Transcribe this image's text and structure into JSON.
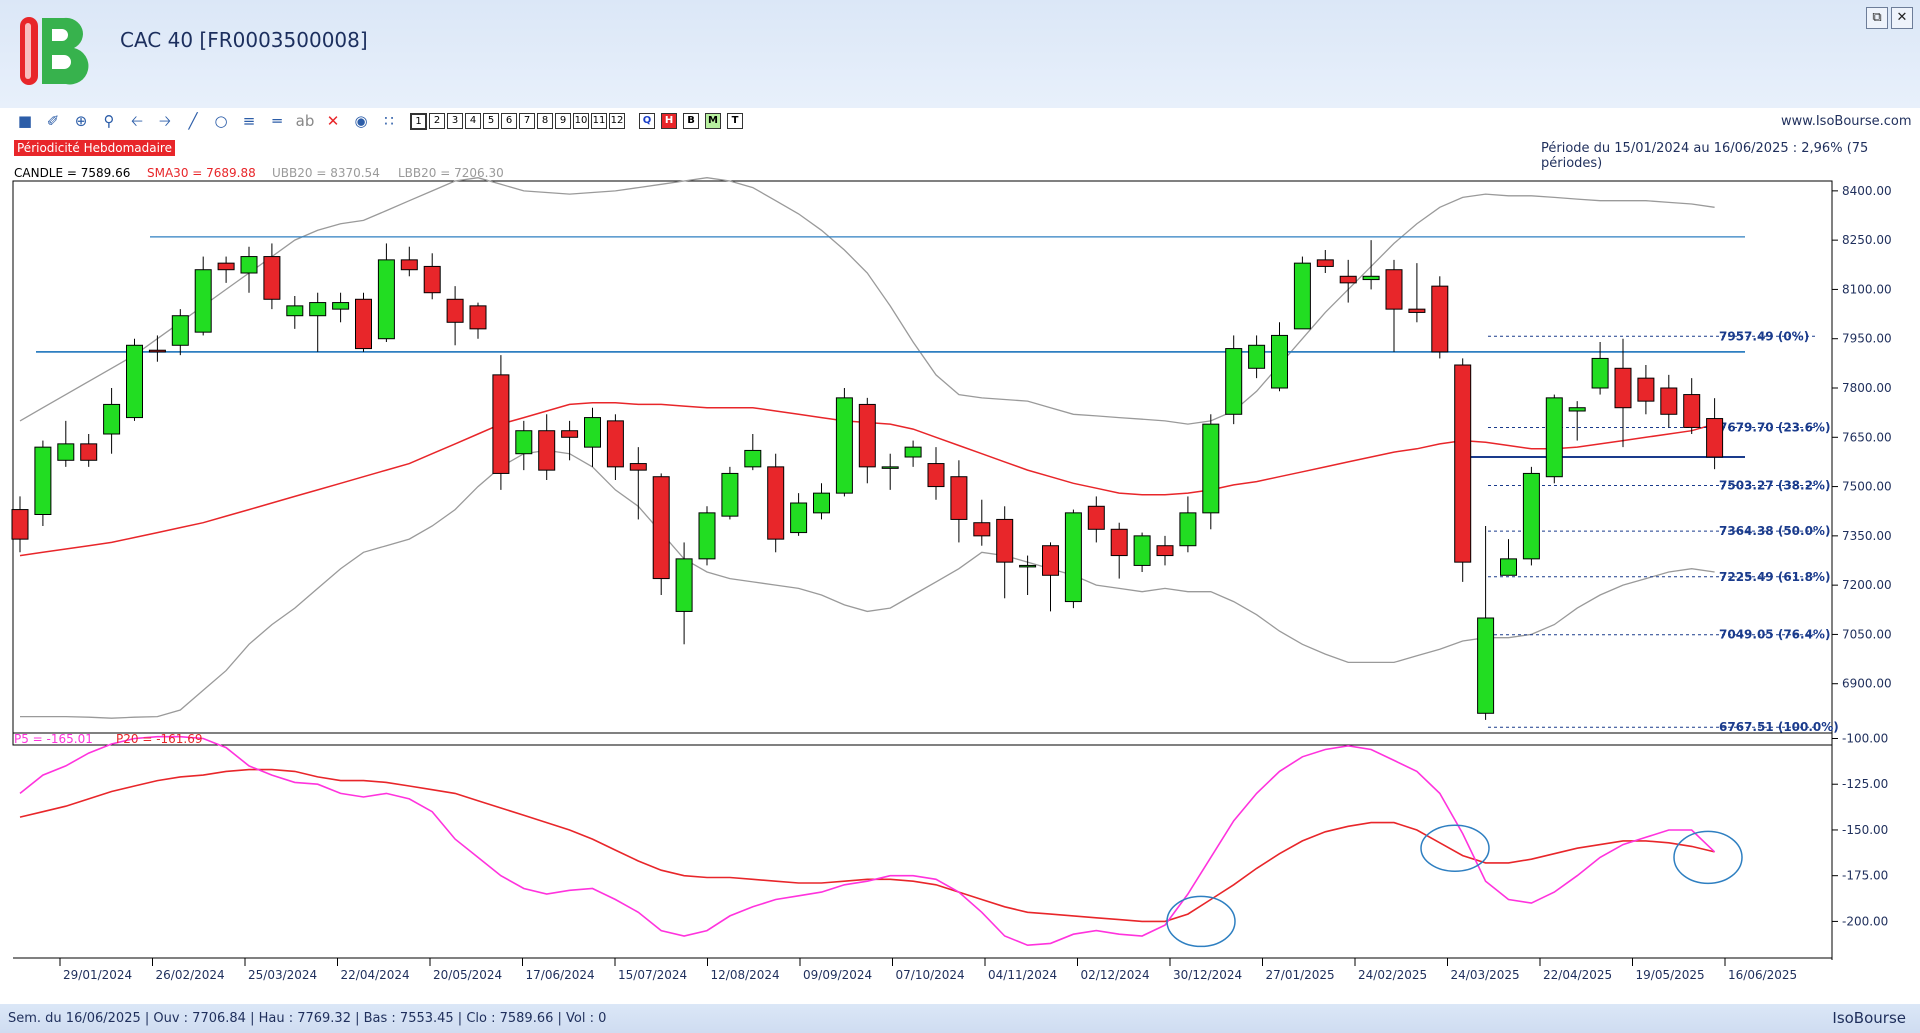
{
  "window": {
    "title": "CAC 40 [FR0003500008]",
    "restore_icon": "restore-icon",
    "close_icon": "close-icon",
    "site": "www.IsoBourse.com"
  },
  "toolbar": {
    "icons": [
      "square-icon",
      "draw-brush-icon",
      "crosshair-icon",
      "zoom-icon",
      "arrow-left-icon",
      "arrow-right-icon",
      "line-icon",
      "circle-icon",
      "fibonacci-icon",
      "channel-icon",
      "text-icon",
      "delete-icon",
      "camera-icon",
      "network-icon"
    ],
    "text_tool_label": "ab",
    "periods": [
      "1",
      "2",
      "3",
      "4",
      "5",
      "6",
      "7",
      "8",
      "9",
      "10",
      "11",
      "12"
    ],
    "letters": [
      {
        "label": "Q",
        "color": "#1a3fc8"
      },
      {
        "label": "H",
        "color": "#ffffff",
        "bg": "#e8262a"
      },
      {
        "label": "B",
        "color": "#000000"
      },
      {
        "label": "M",
        "color": "#000000",
        "bg": "#b8f0a0"
      },
      {
        "label": "T",
        "color": "#000000"
      }
    ]
  },
  "periodicity_label": "Périodicité Hebdomadaire",
  "period_info": "Période du 15/01/2024 au 16/06/2025 : 2,96% (75 périodes)",
  "legend": {
    "candle": "CANDLE = 7589.66",
    "sma": "SMA30 = 7689.88",
    "ubb": "UBB20 = 8370.54",
    "lbb": "LBB20 = 7206.30",
    "p5": "P5 = -165.01",
    "p20": "P20 = -161.69"
  },
  "status": "Sem. du 16/06/2025 | Ouv : 7706.84 | Hau : 7769.32 | Bas : 7553.45 | Clo : 7589.66 | Vol : 0",
  "brand": "IsoBourse",
  "colors": {
    "up": "#22dd22",
    "down": "#e8262a",
    "sma": "#e8262a",
    "bollinger": "#9a9a9a",
    "hline": "#2e7fc1",
    "fib": "#1a3b8c",
    "p5": "#ff33dd",
    "p20": "#e8262a",
    "circle": "#2e7fc1"
  },
  "chart_data": [
    {
      "type": "candlestick",
      "x_ticks": [
        "29/01/2024",
        "26/02/2024",
        "25/03/2024",
        "22/04/2024",
        "20/05/2024",
        "17/06/2024",
        "15/07/2024",
        "12/08/2024",
        "09/09/2024",
        "07/10/2024",
        "04/11/2024",
        "02/12/2024",
        "30/12/2024",
        "27/01/2025",
        "24/02/2025",
        "24/03/2025",
        "22/04/2025",
        "19/05/2025",
        "16/06/2025"
      ],
      "y_ticks": [
        8400,
        8250,
        8100,
        7950,
        7800,
        7650,
        7500,
        7350,
        7200,
        7050,
        6900
      ],
      "ylim": [
        6750,
        8430
      ],
      "candles": [
        [
          7430,
          7340,
          7470,
          7300
        ],
        [
          7415,
          7620,
          7640,
          7380
        ],
        [
          7580,
          7630,
          7700,
          7560
        ],
        [
          7630,
          7580,
          7660,
          7560
        ],
        [
          7660,
          7750,
          7800,
          7600
        ],
        [
          7710,
          7930,
          7950,
          7700
        ],
        [
          7915,
          7910,
          7960,
          7880
        ],
        [
          7930,
          8020,
          8040,
          7900
        ],
        [
          7970,
          8160,
          8200,
          7960
        ],
        [
          8180,
          8160,
          8200,
          8120
        ],
        [
          8150,
          8200,
          8230,
          8090
        ],
        [
          8200,
          8070,
          8240,
          8040
        ],
        [
          8020,
          8050,
          8080,
          7980
        ],
        [
          8020,
          8060,
          8090,
          7910
        ],
        [
          8040,
          8060,
          8090,
          8000
        ],
        [
          8070,
          7920,
          8090,
          7910
        ],
        [
          7950,
          8190,
          8240,
          7940
        ],
        [
          8190,
          8160,
          8230,
          8140
        ],
        [
          8170,
          8090,
          8210,
          8070
        ],
        [
          8070,
          8000,
          8110,
          7930
        ],
        [
          8050,
          7980,
          8060,
          7950
        ],
        [
          7840,
          7540,
          7900,
          7490
        ],
        [
          7600,
          7670,
          7700,
          7550
        ],
        [
          7670,
          7550,
          7720,
          7520
        ],
        [
          7670,
          7650,
          7700,
          7580
        ],
        [
          7620,
          7710,
          7740,
          7560
        ],
        [
          7700,
          7560,
          7720,
          7520
        ],
        [
          7570,
          7550,
          7620,
          7400
        ],
        [
          7530,
          7220,
          7540,
          7170
        ],
        [
          7120,
          7280,
          7330,
          7020
        ],
        [
          7280,
          7420,
          7440,
          7260
        ],
        [
          7410,
          7540,
          7560,
          7400
        ],
        [
          7560,
          7610,
          7660,
          7550
        ],
        [
          7560,
          7340,
          7600,
          7300
        ],
        [
          7360,
          7450,
          7480,
          7350
        ],
        [
          7420,
          7480,
          7510,
          7400
        ],
        [
          7480,
          7770,
          7800,
          7470
        ],
        [
          7750,
          7560,
          7770,
          7510
        ],
        [
          7560,
          7560,
          7600,
          7490
        ],
        [
          7590,
          7620,
          7640,
          7560
        ],
        [
          7570,
          7500,
          7620,
          7460
        ],
        [
          7530,
          7400,
          7580,
          7330
        ],
        [
          7390,
          7350,
          7460,
          7320
        ],
        [
          7400,
          7270,
          7440,
          7160
        ],
        [
          7260,
          7260,
          7290,
          7170
        ],
        [
          7320,
          7230,
          7330,
          7120
        ],
        [
          7150,
          7420,
          7430,
          7130
        ],
        [
          7440,
          7370,
          7470,
          7330
        ],
        [
          7370,
          7290,
          7390,
          7220
        ],
        [
          7260,
          7350,
          7360,
          7240
        ],
        [
          7320,
          7290,
          7350,
          7260
        ],
        [
          7320,
          7420,
          7470,
          7300
        ],
        [
          7420,
          7690,
          7720,
          7370
        ],
        [
          7720,
          7920,
          7960,
          7690
        ],
        [
          7860,
          7930,
          7960,
          7830
        ],
        [
          7800,
          7960,
          8000,
          7790
        ],
        [
          7980,
          8180,
          8200,
          7980
        ],
        [
          8190,
          8170,
          8220,
          8150
        ],
        [
          8140,
          8120,
          8190,
          8060
        ],
        [
          8130,
          8140,
          8250,
          8100
        ],
        [
          8160,
          8040,
          8190,
          7910
        ],
        [
          8040,
          8030,
          8180,
          8000
        ],
        [
          8110,
          7910,
          8140,
          7890
        ],
        [
          7870,
          7270,
          7890,
          7210
        ],
        [
          6810,
          7100,
          7380,
          6790
        ],
        [
          7230,
          7280,
          7340,
          7230
        ],
        [
          7280,
          7540,
          7560,
          7260
        ],
        [
          7530,
          7770,
          7780,
          7510
        ],
        [
          7730,
          7740,
          7760,
          7640
        ],
        [
          7800,
          7890,
          7940,
          7780
        ],
        [
          7860,
          7740,
          7950,
          7620
        ],
        [
          7830,
          7760,
          7870,
          7720
        ],
        [
          7800,
          7720,
          7840,
          7680
        ],
        [
          7780,
          7680,
          7830,
          7660
        ],
        [
          7707,
          7590,
          7769,
          7553
        ]
      ],
      "sma30": [
        7290,
        7300,
        7310,
        7320,
        7330,
        7345,
        7360,
        7375,
        7390,
        7410,
        7430,
        7450,
        7470,
        7490,
        7510,
        7530,
        7550,
        7570,
        7600,
        7630,
        7660,
        7690,
        7710,
        7730,
        7750,
        7755,
        7755,
        7750,
        7750,
        7745,
        7740,
        7740,
        7740,
        7730,
        7720,
        7710,
        7700,
        7695,
        7690,
        7675,
        7650,
        7625,
        7600,
        7575,
        7550,
        7530,
        7510,
        7495,
        7480,
        7475,
        7475,
        7480,
        7490,
        7505,
        7515,
        7530,
        7545,
        7560,
        7575,
        7590,
        7605,
        7615,
        7630,
        7640,
        7635,
        7625,
        7615,
        7615,
        7620,
        7630,
        7640,
        7650,
        7660,
        7670,
        7690
      ],
      "ubb20": [
        7700,
        7740,
        7780,
        7820,
        7860,
        7900,
        7950,
        8000,
        8050,
        8100,
        8150,
        8200,
        8250,
        8280,
        8300,
        8310,
        8340,
        8370,
        8400,
        8430,
        8440,
        8420,
        8400,
        8395,
        8390,
        8395,
        8400,
        8410,
        8420,
        8430,
        8440,
        8430,
        8410,
        8370,
        8330,
        8280,
        8220,
        8150,
        8050,
        7940,
        7840,
        7780,
        7770,
        7765,
        7760,
        7740,
        7720,
        7715,
        7710,
        7705,
        7700,
        7690,
        7700,
        7730,
        7790,
        7870,
        7950,
        8030,
        8100,
        8170,
        8240,
        8300,
        8350,
        8380,
        8390,
        8385,
        8385,
        8380,
        8375,
        8370,
        8370,
        8370,
        8365,
        8360,
        8350
      ],
      "lbb20": [
        6800,
        6800,
        6800,
        6798,
        6795,
        6798,
        6800,
        6820,
        6880,
        6940,
        7020,
        7080,
        7130,
        7190,
        7250,
        7300,
        7320,
        7340,
        7380,
        7430,
        7500,
        7560,
        7600,
        7610,
        7600,
        7560,
        7490,
        7440,
        7360,
        7280,
        7240,
        7220,
        7210,
        7200,
        7190,
        7170,
        7140,
        7120,
        7130,
        7170,
        7210,
        7250,
        7300,
        7290,
        7270,
        7250,
        7230,
        7200,
        7190,
        7180,
        7190,
        7180,
        7180,
        7150,
        7110,
        7060,
        7020,
        6990,
        6965,
        6965,
        6965,
        6985,
        7005,
        7030,
        7040,
        7040,
        7050,
        7080,
        7130,
        7170,
        7200,
        7220,
        7240,
        7250,
        7240
      ],
      "hlines": [
        {
          "value": 8260,
          "color": "#2e7fc1"
        },
        {
          "value": 7910,
          "color": "#2e7fc1"
        },
        {
          "value": 7590,
          "color": "#1a3b8c"
        }
      ],
      "fibonacci": [
        {
          "value": 7957.49,
          "label": "7957.49 (0%)"
        },
        {
          "value": 7679.7,
          "label": "7679.70 (23.6%)"
        },
        {
          "value": 7503.27,
          "label": "7503.27 (38.2%)"
        },
        {
          "value": 7364.38,
          "label": "7364.38 (50.0%)"
        },
        {
          "value": 7225.49,
          "label": "7225.49 (61.8%)"
        },
        {
          "value": 7049.05,
          "label": "7049.05 (76.4%)"
        },
        {
          "value": 6767.51,
          "label": "6767.51 (100.0%)"
        }
      ]
    },
    {
      "type": "line",
      "y_ticks": [
        -100,
        -125,
        -150,
        -175,
        -200
      ],
      "ylim": [
        -220,
        -97
      ],
      "series": [
        {
          "name": "P5",
          "values": [
            -130,
            -120,
            -115,
            -108,
            -103,
            -100,
            -99,
            -99,
            -100,
            -105,
            -115,
            -120,
            -124,
            -125,
            -130,
            -132,
            -130,
            -133,
            -140,
            -155,
            -165,
            -175,
            -182,
            -185,
            -183,
            -182,
            -188,
            -195,
            -205,
            -208,
            -205,
            -197,
            -192,
            -188,
            -186,
            -184,
            -180,
            -178,
            -175,
            -175,
            -177,
            -184,
            -195,
            -208,
            -213,
            -212,
            -207,
            -205,
            -207,
            -208,
            -202,
            -185,
            -165,
            -145,
            -130,
            -118,
            -110,
            -106,
            -104,
            -106,
            -112,
            -118,
            -130,
            -152,
            -178,
            -188,
            -190,
            -184,
            -175,
            -165,
            -158,
            -154,
            -150,
            -150,
            -162
          ]
        },
        {
          "name": "P20",
          "values": [
            -143,
            -140,
            -137,
            -133,
            -129,
            -126,
            -123,
            -121,
            -120,
            -118,
            -117,
            -117,
            -118,
            -121,
            -123,
            -123,
            -124,
            -126,
            -128,
            -130,
            -134,
            -138,
            -142,
            -146,
            -150,
            -155,
            -161,
            -167,
            -172,
            -175,
            -176,
            -176,
            -177,
            -178,
            -179,
            -179,
            -178,
            -177,
            -177,
            -178,
            -180,
            -184,
            -188,
            -192,
            -195,
            -196,
            -197,
            -198,
            -199,
            -200,
            -200,
            -196,
            -188,
            -180,
            -171,
            -163,
            -156,
            -151,
            -148,
            -146,
            -146,
            -150,
            -157,
            -164,
            -168,
            -168,
            -166,
            -163,
            -160,
            -158,
            -156,
            -156,
            -157,
            -159,
            -162
          ]
        }
      ],
      "annotations": [
        "circle",
        "circle",
        "circle"
      ]
    }
  ]
}
